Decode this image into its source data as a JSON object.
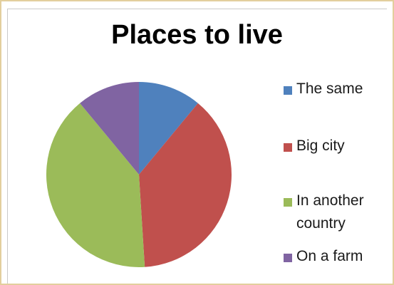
{
  "chart_data": {
    "type": "pie",
    "title": "Places to live",
    "categories": [
      "The same",
      "Big city",
      "In another country",
      "On a farm"
    ],
    "values": [
      11,
      38,
      40,
      11
    ],
    "colors": [
      "#4f81bd",
      "#c0504d",
      "#9bbb59",
      "#8064a2"
    ],
    "legend_position": "right",
    "legend": [
      "The same",
      "Big city",
      "In another\ncountry",
      "On a farm"
    ]
  }
}
